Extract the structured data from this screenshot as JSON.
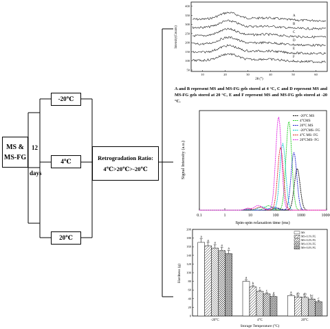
{
  "flow": {
    "sample_label": "MS & MS-FG",
    "duration_number": "12",
    "duration_unit": "days",
    "temps": [
      "-20℃",
      "4℃",
      "20℃"
    ],
    "retro_title": "Retrogradation Ratio:",
    "retro_order": "4℃>20℃>-20℃"
  },
  "xrd": {
    "ylabel": "Intensity(Counts)",
    "xlabel": "2θ (°)",
    "yticks": [
      "400",
      "350",
      "300",
      "250",
      "200",
      "150",
      "100",
      "50"
    ],
    "xticks": [
      "10",
      "20",
      "30",
      "40",
      "50",
      "60"
    ],
    "curve_labels": [
      "A",
      "B",
      "C",
      "D",
      "E",
      "F"
    ],
    "caption": "A and B represent MS and MS-FG gels stored at 4 °C, C and D represent MS and MS-FG gels stored at 20 °C, E and F represent MS and MS-FG gels stored at -20 °C."
  },
  "chart_data": [
    {
      "type": "line",
      "title": "",
      "xlabel": "Spin-spin relaxation time (ms)",
      "ylabel": "Signal Intensity (a.u.)",
      "x_scale": "log",
      "xlim": [
        0.1,
        10000
      ],
      "xticks": [
        "0.1",
        "1",
        "10",
        "100",
        "1000",
        "10000"
      ],
      "ylim": [
        0,
        220
      ],
      "legend_position": "top-right",
      "series": [
        {
          "name": "-20°C MS",
          "color": "#000000",
          "peak_x": 700,
          "peak_y": 92
        },
        {
          "name": "4°CMS",
          "color": "#22cc22",
          "peak_x": 330,
          "peak_y": 196
        },
        {
          "name": "20°C MS",
          "color": "#1a1acc",
          "peak_x": 520,
          "peak_y": 127
        },
        {
          "name": "-20°CMS- FG",
          "color": "#00c8c8",
          "peak_x": 190,
          "peak_y": 147
        },
        {
          "name": "4°C MS- FG",
          "color": "#e02020",
          "peak_x": 155,
          "peak_y": 138
        },
        {
          "name": "20°CMS- FG",
          "color": "#e020e0",
          "peak_x": 130,
          "peak_y": 206
        }
      ]
    },
    {
      "type": "bar",
      "title": "",
      "xlabel": "Storage Temperature (°C)",
      "ylabel": "Hardness (g)",
      "ylim": [
        0,
        200
      ],
      "yticks": [
        "0",
        "20",
        "40",
        "60",
        "80",
        "100",
        "120",
        "140",
        "160",
        "180",
        "200"
      ],
      "categories": [
        "-20°C",
        "4°C",
        "20°C"
      ],
      "legend_position": "top-right",
      "series": [
        {
          "name": "MS",
          "values": [
            170,
            80,
            47
          ],
          "letters": [
            "a",
            "a",
            "a"
          ]
        },
        {
          "name": "MS+0.1% FG",
          "values": [
            162,
            67,
            44
          ],
          "letters": [
            "a",
            "b",
            "ab"
          ]
        },
        {
          "name": "MS+0.2% FG",
          "values": [
            157,
            57,
            43
          ],
          "letters": [
            "a",
            "c",
            "ab"
          ]
        },
        {
          "name": "MS+0.3% FG",
          "values": [
            151,
            51,
            39
          ],
          "letters": [
            "a",
            "c",
            "bc"
          ]
        },
        {
          "name": "MS+0.4% FG",
          "values": [
            144,
            45,
            33
          ],
          "letters": [
            "a",
            "d",
            "c"
          ]
        }
      ]
    }
  ]
}
